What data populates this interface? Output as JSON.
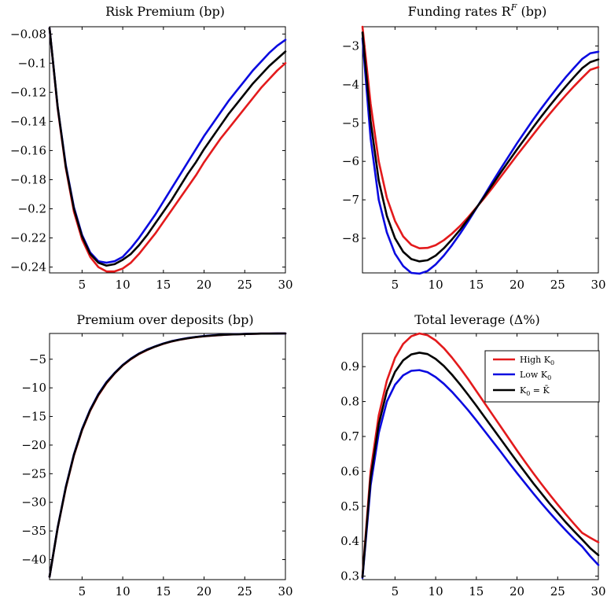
{
  "colors": {
    "high": "#e31a1c",
    "low": "#0a0ae0",
    "steady": "#000000"
  },
  "chart_data": [
    {
      "type": "line",
      "title": "Risk Premium (bp)",
      "xlim": [
        1,
        30
      ],
      "ylim": [
        -0.244,
        -0.075
      ],
      "xticks": [
        5,
        10,
        15,
        20,
        25,
        30
      ],
      "yticks": [
        -0.08,
        -0.1,
        -0.12,
        -0.14,
        -0.16,
        -0.18,
        -0.2,
        -0.22,
        -0.24
      ],
      "ytick_labels": [
        "−0.08",
        "−0.1",
        "−0.12",
        "−0.14",
        "−0.16",
        "−0.18",
        "−0.2",
        "−0.22",
        "−0.24"
      ],
      "grid": false,
      "x": [
        1,
        2,
        3,
        4,
        5,
        6,
        7,
        8,
        9,
        10,
        11,
        12,
        13,
        14,
        15,
        16,
        17,
        18,
        19,
        20,
        21,
        22,
        23,
        24,
        25,
        26,
        27,
        28,
        29,
        30
      ],
      "series": [
        {
          "key": "high",
          "values": [
            -0.076,
            -0.131,
            -0.172,
            -0.202,
            -0.221,
            -0.233,
            -0.24,
            -0.243,
            -0.243,
            -0.241,
            -0.237,
            -0.231,
            -0.224,
            -0.217,
            -0.209,
            -0.201,
            -0.193,
            -0.185,
            -0.177,
            -0.168,
            -0.16,
            -0.152,
            -0.145,
            -0.138,
            -0.131,
            -0.124,
            -0.117,
            -0.111,
            -0.105,
            -0.1
          ]
        },
        {
          "key": "low",
          "values": [
            -0.076,
            -0.13,
            -0.17,
            -0.199,
            -0.218,
            -0.23,
            -0.236,
            -0.237,
            -0.236,
            -0.233,
            -0.227,
            -0.22,
            -0.212,
            -0.204,
            -0.195,
            -0.186,
            -0.177,
            -0.168,
            -0.159,
            -0.15,
            -0.142,
            -0.134,
            -0.126,
            -0.119,
            -0.112,
            -0.105,
            -0.099,
            -0.093,
            -0.088,
            -0.084
          ]
        },
        {
          "key": "steady",
          "values": [
            -0.076,
            -0.13,
            -0.171,
            -0.2,
            -0.219,
            -0.231,
            -0.237,
            -0.239,
            -0.238,
            -0.235,
            -0.231,
            -0.225,
            -0.218,
            -0.21,
            -0.202,
            -0.194,
            -0.185,
            -0.176,
            -0.168,
            -0.159,
            -0.151,
            -0.143,
            -0.135,
            -0.128,
            -0.121,
            -0.114,
            -0.108,
            -0.102,
            -0.097,
            -0.092
          ]
        }
      ]
    },
    {
      "type": "line",
      "title": "Funding rates R",
      "title_super": "F",
      "title_tail": " (bp)",
      "xlim": [
        1,
        30
      ],
      "ylim": [
        -8.9,
        -2.5
      ],
      "xticks": [
        5,
        10,
        15,
        20,
        25,
        30
      ],
      "yticks": [
        -3,
        -4,
        -5,
        -6,
        -7,
        -8
      ],
      "ytick_labels": [
        "−3",
        "−4",
        "−5",
        "−6",
        "−7",
        "−8"
      ],
      "grid": false,
      "x": [
        1,
        2,
        3,
        4,
        5,
        6,
        7,
        8,
        9,
        10,
        11,
        12,
        13,
        14,
        15,
        16,
        17,
        18,
        19,
        20,
        21,
        22,
        23,
        24,
        25,
        26,
        27,
        28,
        29,
        30
      ],
      "series": [
        {
          "key": "high",
          "values": [
            -2.5,
            -4.5,
            -6.0,
            -6.95,
            -7.55,
            -7.95,
            -8.17,
            -8.26,
            -8.25,
            -8.18,
            -8.05,
            -7.88,
            -7.68,
            -7.45,
            -7.2,
            -6.95,
            -6.68,
            -6.4,
            -6.12,
            -5.84,
            -5.57,
            -5.3,
            -5.03,
            -4.77,
            -4.52,
            -4.28,
            -4.05,
            -3.83,
            -3.62,
            -3.55
          ]
        },
        {
          "key": "low",
          "values": [
            -2.8,
            -5.4,
            -7.0,
            -7.85,
            -8.4,
            -8.72,
            -8.9,
            -8.92,
            -8.85,
            -8.68,
            -8.45,
            -8.18,
            -7.88,
            -7.56,
            -7.22,
            -6.88,
            -6.53,
            -6.19,
            -5.86,
            -5.53,
            -5.22,
            -4.91,
            -4.62,
            -4.34,
            -4.07,
            -3.81,
            -3.57,
            -3.34,
            -3.19,
            -3.15
          ]
        },
        {
          "key": "steady",
          "values": [
            -2.65,
            -4.95,
            -6.5,
            -7.42,
            -8.0,
            -8.35,
            -8.54,
            -8.6,
            -8.57,
            -8.45,
            -8.26,
            -8.03,
            -7.78,
            -7.5,
            -7.21,
            -6.91,
            -6.6,
            -6.29,
            -5.99,
            -5.69,
            -5.4,
            -5.11,
            -4.83,
            -4.56,
            -4.3,
            -4.05,
            -3.81,
            -3.58,
            -3.42,
            -3.35
          ]
        }
      ]
    },
    {
      "type": "line",
      "title": "Premium over deposits (bp)",
      "xlim": [
        1,
        30
      ],
      "ylim": [
        -43.5,
        -0.5
      ],
      "xticks": [
        5,
        10,
        15,
        20,
        25,
        30
      ],
      "yticks": [
        -5,
        -10,
        -15,
        -20,
        -25,
        -30,
        -35,
        -40
      ],
      "ytick_labels": [
        "−5",
        "−10",
        "−15",
        "−20",
        "−25",
        "−30",
        "−35",
        "−40"
      ],
      "grid": false,
      "x": [
        1,
        2,
        3,
        4,
        5,
        6,
        7,
        8,
        9,
        10,
        11,
        12,
        13,
        14,
        15,
        16,
        17,
        18,
        19,
        20,
        21,
        22,
        23,
        24,
        25,
        26,
        27,
        28,
        29,
        30
      ],
      "series": [
        {
          "key": "high",
          "values": [
            -43.0,
            -34.5,
            -27.5,
            -21.8,
            -17.4,
            -14.0,
            -11.3,
            -9.2,
            -7.5,
            -6.1,
            -5.0,
            -4.1,
            -3.4,
            -2.8,
            -2.3,
            -1.9,
            -1.6,
            -1.35,
            -1.15,
            -1.0,
            -0.88,
            -0.78,
            -0.7,
            -0.64,
            -0.59,
            -0.56,
            -0.53,
            -0.52,
            -0.51,
            -0.5
          ]
        },
        {
          "key": "low",
          "values": [
            -43.0,
            -34.4,
            -27.3,
            -21.6,
            -17.2,
            -13.8,
            -11.1,
            -9.0,
            -7.4,
            -6.0,
            -4.9,
            -4.0,
            -3.3,
            -2.75,
            -2.25,
            -1.85,
            -1.55,
            -1.3,
            -1.1,
            -0.95,
            -0.84,
            -0.75,
            -0.68,
            -0.63,
            -0.58,
            -0.55,
            -0.53,
            -0.52,
            -0.51,
            -0.5
          ]
        },
        {
          "key": "steady",
          "values": [
            -43.0,
            -34.45,
            -27.4,
            -21.7,
            -17.3,
            -13.9,
            -11.2,
            -9.1,
            -7.45,
            -6.05,
            -4.95,
            -4.05,
            -3.35,
            -2.78,
            -2.28,
            -1.88,
            -1.58,
            -1.33,
            -1.13,
            -0.98,
            -0.86,
            -0.77,
            -0.69,
            -0.64,
            -0.59,
            -0.56,
            -0.53,
            -0.52,
            -0.51,
            -0.5
          ]
        }
      ]
    },
    {
      "type": "line",
      "title": "Total leverage (Δ%)",
      "xlim": [
        1,
        30
      ],
      "ylim": [
        0.29,
        0.995
      ],
      "xticks": [
        5,
        10,
        15,
        20,
        25,
        30
      ],
      "yticks": [
        0.3,
        0.4,
        0.5,
        0.6,
        0.7,
        0.8,
        0.9
      ],
      "ytick_labels": [
        "0.3",
        "0.4",
        "0.5",
        "0.6",
        "0.7",
        "0.8",
        "0.9"
      ],
      "grid": false,
      "legend_position": "top-right",
      "x": [
        1,
        2,
        3,
        4,
        5,
        6,
        7,
        8,
        9,
        10,
        11,
        12,
        13,
        14,
        15,
        16,
        17,
        18,
        19,
        20,
        21,
        22,
        23,
        24,
        25,
        26,
        27,
        28,
        29,
        30
      ],
      "series": [
        {
          "key": "high",
          "legend": "High K",
          "legend_sub": "0",
          "values": [
            0.3,
            0.6,
            0.76,
            0.86,
            0.925,
            0.965,
            0.987,
            0.995,
            0.99,
            0.975,
            0.953,
            0.926,
            0.896,
            0.864,
            0.83,
            0.796,
            0.762,
            0.728,
            0.694,
            0.66,
            0.627,
            0.595,
            0.564,
            0.534,
            0.505,
            0.477,
            0.45,
            0.424,
            0.41,
            0.397
          ]
        },
        {
          "key": "low",
          "legend": "Low K",
          "legend_sub": "0",
          "values": [
            0.295,
            0.56,
            0.71,
            0.8,
            0.848,
            0.875,
            0.888,
            0.89,
            0.884,
            0.87,
            0.851,
            0.828,
            0.802,
            0.775,
            0.746,
            0.716,
            0.686,
            0.656,
            0.625,
            0.595,
            0.566,
            0.537,
            0.509,
            0.482,
            0.456,
            0.431,
            0.407,
            0.385,
            0.357,
            0.332
          ]
        },
        {
          "key": "steady",
          "legend": "K",
          "legend_sub": "0",
          "legend_tail": " = K̄",
          "values": [
            0.297,
            0.58,
            0.735,
            0.83,
            0.885,
            0.918,
            0.935,
            0.94,
            0.936,
            0.922,
            0.902,
            0.877,
            0.849,
            0.819,
            0.788,
            0.756,
            0.724,
            0.692,
            0.66,
            0.628,
            0.597,
            0.566,
            0.537,
            0.508,
            0.481,
            0.454,
            0.429,
            0.405,
            0.38,
            0.36
          ]
        }
      ]
    }
  ]
}
